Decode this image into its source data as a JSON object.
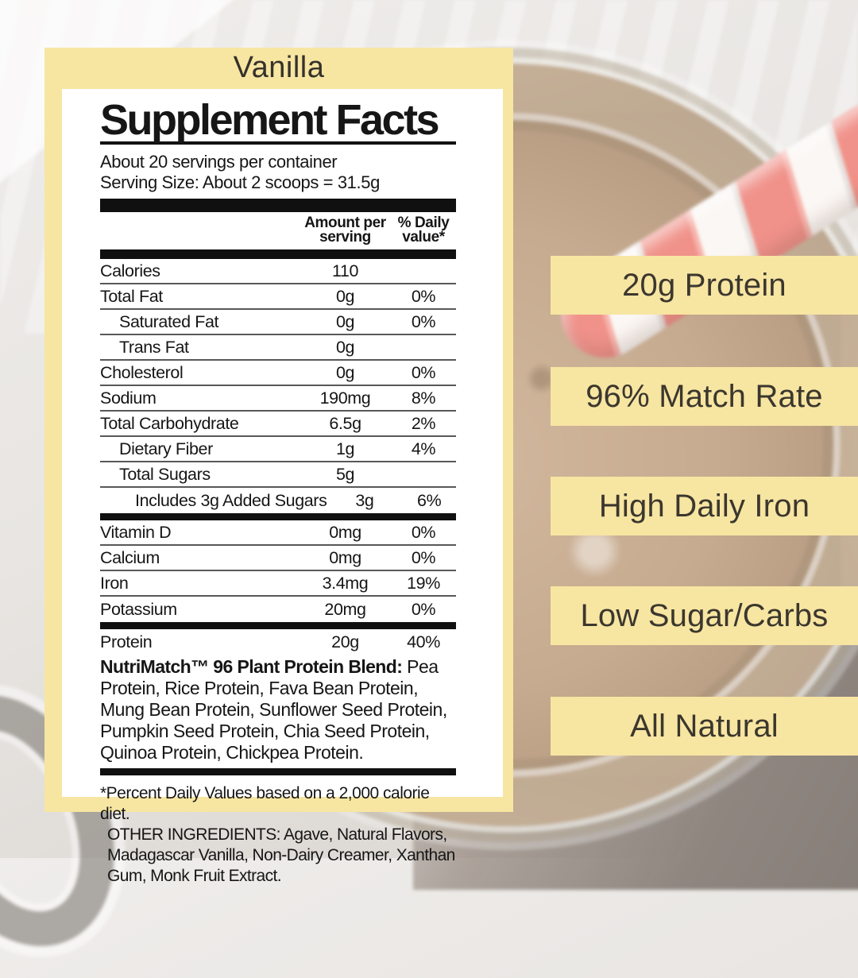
{
  "product": {
    "flavor": "Vanilla"
  },
  "panel": {
    "title": "Supplement Facts",
    "servings_per_container": "About 20 servings per container",
    "serving_size": "Serving Size: About 2 scoops = 31.5g",
    "columns": {
      "amount": "Amount per serving",
      "dv": "% Daily value*"
    },
    "rows": [
      {
        "name": "Calories",
        "amount": "110",
        "dv": "",
        "indent": 0
      },
      {
        "name": "Total Fat",
        "amount": "0g",
        "dv": "0%",
        "indent": 0
      },
      {
        "name": "Saturated Fat",
        "amount": "0g",
        "dv": "0%",
        "indent": 1
      },
      {
        "name": "Trans Fat",
        "amount": "0g",
        "dv": "",
        "indent": 1
      },
      {
        "name": "Cholesterol",
        "amount": "0g",
        "dv": "0%",
        "indent": 0
      },
      {
        "name": "Sodium",
        "amount": "190mg",
        "dv": "8%",
        "indent": 0
      },
      {
        "name": "Total Carbohydrate",
        "amount": "6.5g",
        "dv": "2%",
        "indent": 0
      },
      {
        "name": "Dietary Fiber",
        "amount": "1g",
        "dv": "4%",
        "indent": 1
      },
      {
        "name": "Total Sugars",
        "amount": "5g",
        "dv": "",
        "indent": 1
      },
      {
        "name": "Includes 3g Added Sugars",
        "amount": "3g",
        "dv": "6%",
        "indent": 2,
        "bar_after": true
      },
      {
        "name": "Vitamin D",
        "amount": "0mg",
        "dv": "0%",
        "indent": 0
      },
      {
        "name": "Calcium",
        "amount": "0mg",
        "dv": "0%",
        "indent": 0
      },
      {
        "name": "Iron",
        "amount": "3.4mg",
        "dv": "19%",
        "indent": 0
      },
      {
        "name": "Potassium",
        "amount": "20mg",
        "dv": "0%",
        "indent": 0,
        "bar_after": true
      },
      {
        "name": "Protein",
        "amount": "20g",
        "dv": "40%",
        "indent": 0,
        "no_line": true
      }
    ],
    "blend_label": "NutriMatch™ 96 Plant Protein Blend:",
    "blend_text": " Pea Protein, Rice Protein, Fava Bean Protein, Mung Bean Protein, Sunflower Seed Protein, Pumpkin Seed Protein, Chia Seed Protein, Quinoa Protein, Chickpea Protein.",
    "footnote_dv": "*Percent Daily Values based on a 2,000 calorie diet.",
    "other_ingredients": "OTHER INGREDIENTS: Agave, Natural Flavors, Madagascar Vanilla, Non-Dairy Creamer, Xanthan Gum, Monk Fruit Extract."
  },
  "badges": [
    {
      "label": "20g Protein"
    },
    {
      "label": "96% Match Rate"
    },
    {
      "label": "High Daily Iron"
    },
    {
      "label": "Low Sugar/Carbs"
    },
    {
      "label": "All Natural"
    }
  ],
  "colors": {
    "accent_yellow": "#F7E5A2",
    "straw_red": "#F0928A",
    "label_text": "#161616",
    "badge_text": "#3B372E"
  }
}
